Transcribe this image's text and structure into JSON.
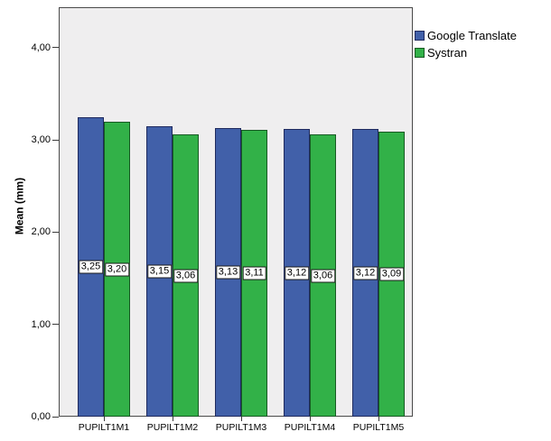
{
  "chart_data": {
    "type": "bar",
    "title": "",
    "categories": [
      "PUPILT1M1",
      "PUPILT1M2",
      "PUPILT1M3",
      "PUPILT1M4",
      "PUPILT1M5"
    ],
    "series": [
      {
        "name": "Google Translate",
        "color": "#4160A9",
        "border_color": "#1F2A5E",
        "values": [
          3.25,
          3.15,
          3.13,
          3.12,
          3.12
        ],
        "value_labels": [
          "3,25",
          "3,15",
          "3,13",
          "3,12",
          "3,12"
        ]
      },
      {
        "name": "Systran",
        "color": "#32B148",
        "border_color": "#175A23",
        "values": [
          3.2,
          3.06,
          3.11,
          3.06,
          3.09
        ],
        "value_labels": [
          "3,20",
          "3,06",
          "3,11",
          "3,06",
          "3,09"
        ]
      }
    ],
    "xlabel": "",
    "ylabel": "Mean (mm)",
    "ylim": [
      0,
      4.44
    ],
    "yticks": [
      {
        "value": 0,
        "label": "0,00"
      },
      {
        "value": 1,
        "label": "1,00"
      },
      {
        "value": 2,
        "label": "2,00"
      },
      {
        "value": 3,
        "label": "3,00"
      },
      {
        "value": 4,
        "label": "4,00"
      }
    ],
    "grid": false,
    "legend_position": "top-right",
    "plot_background": "#EFEEEF",
    "value_label_style": "boxed, centered at half bar height"
  }
}
